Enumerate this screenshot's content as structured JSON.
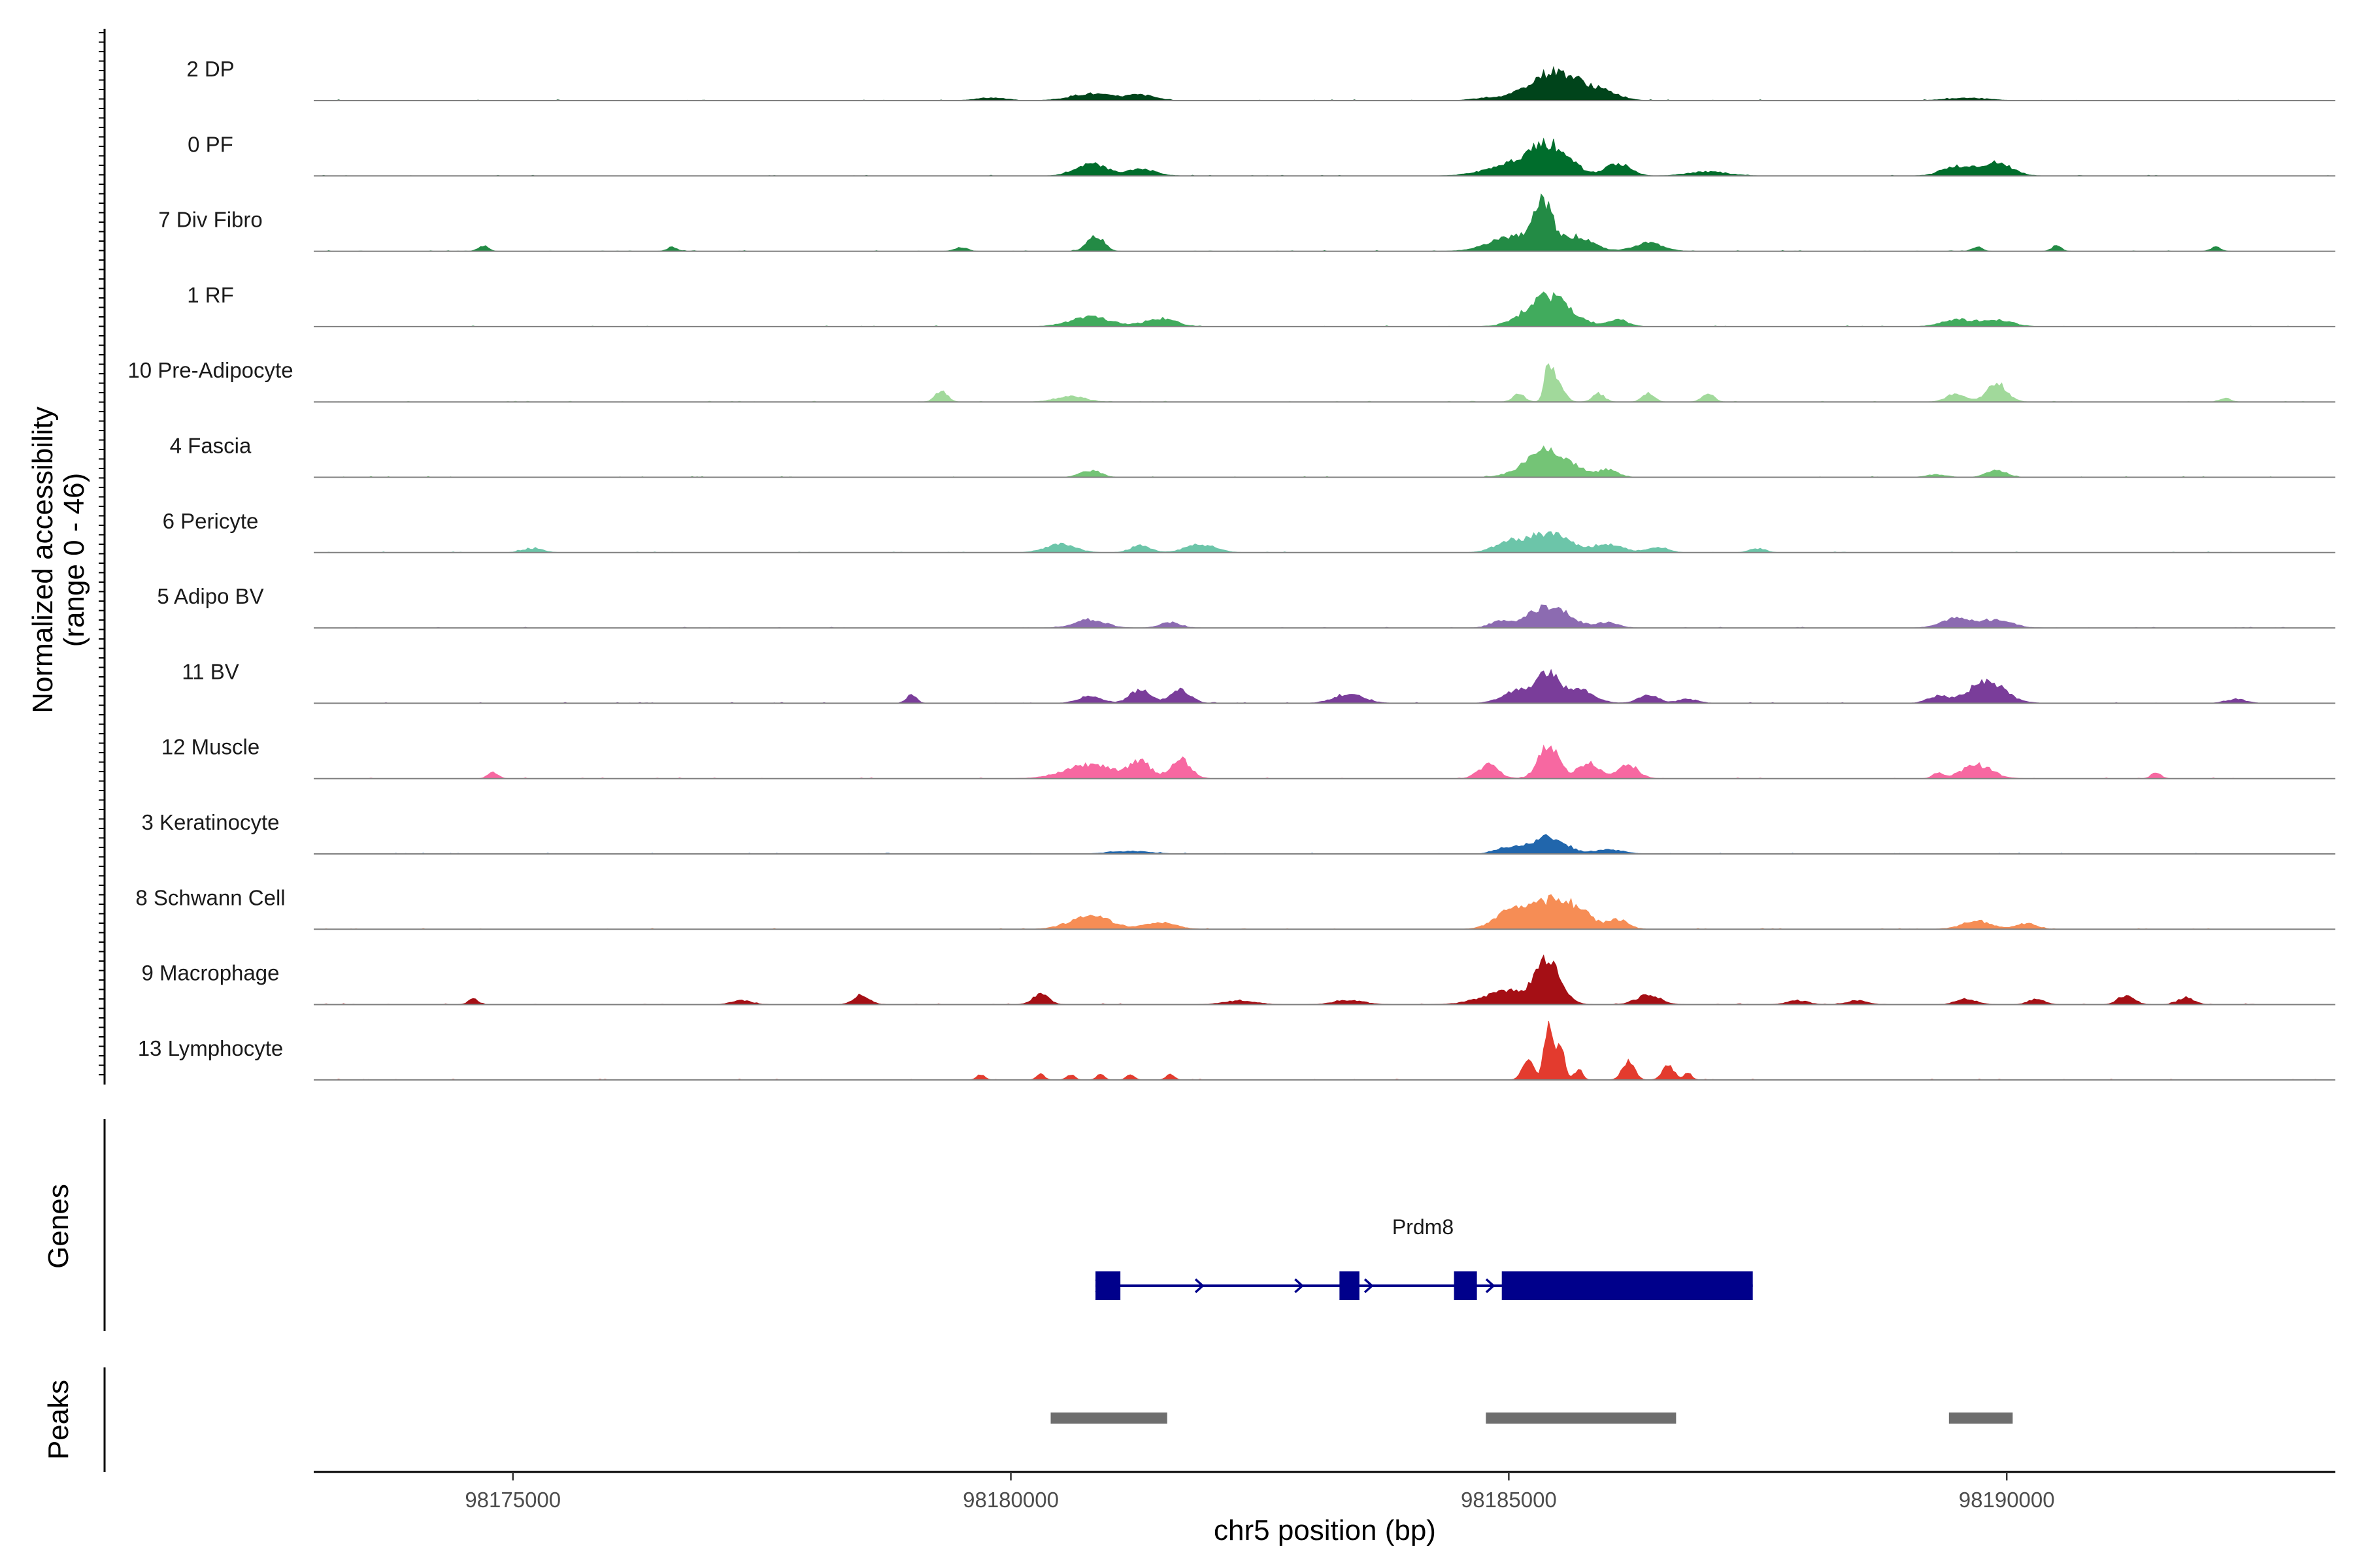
{
  "chart_data": {
    "type": "area",
    "subtype": "genome-browser-coverage",
    "chromosome": "chr5",
    "x_range": [
      98173000,
      98193300
    ],
    "xlabel": "chr5 position (bp)",
    "x_ticks": [
      98175000,
      98180000,
      98185000,
      98190000
    ],
    "x_tick_labels": [
      "98175000",
      "98180000",
      "98185000",
      "98190000"
    ],
    "ylabel_line1": "Normalized accessibility",
    "ylabel_line2": "(range 0 - 46)",
    "y_range": [
      0,
      46
    ],
    "series": [
      {
        "name": "2 DP",
        "color": "#00441b",
        "peaks": [
          [
            98185400,
            18,
            220
          ],
          [
            98185700,
            8,
            200
          ],
          [
            98180800,
            5,
            200
          ],
          [
            98181300,
            4,
            150
          ],
          [
            98186000,
            4,
            150
          ],
          [
            98179800,
            2,
            150
          ],
          [
            98184800,
            2,
            150
          ],
          [
            98189600,
            2,
            200
          ]
        ]
      },
      {
        "name": "0 PF",
        "color": "#006d2c",
        "peaks": [
          [
            98185400,
            22,
            200
          ],
          [
            98185000,
            7,
            250
          ],
          [
            98180800,
            9,
            150
          ],
          [
            98181300,
            5,
            150
          ],
          [
            98186100,
            9,
            120
          ],
          [
            98189500,
            7,
            150
          ],
          [
            98189900,
            10,
            150
          ],
          [
            98187000,
            3,
            200
          ]
        ]
      },
      {
        "name": "7 Div Fibro",
        "color": "#238b45",
        "peaks": [
          [
            98185350,
            28,
            90
          ],
          [
            98185100,
            12,
            250
          ],
          [
            98185700,
            10,
            150
          ],
          [
            98180850,
            12,
            80
          ],
          [
            98174700,
            4,
            50
          ],
          [
            98176600,
            3,
            50
          ],
          [
            98179500,
            3,
            60
          ],
          [
            98186400,
            6,
            150
          ],
          [
            98189700,
            3,
            50
          ],
          [
            98190500,
            4,
            50
          ],
          [
            98192100,
            3,
            50
          ]
        ]
      },
      {
        "name": "1 RF",
        "color": "#41ab5d",
        "peaks": [
          [
            98185400,
            22,
            220
          ],
          [
            98180800,
            7,
            200
          ],
          [
            98181500,
            6,
            150
          ],
          [
            98186100,
            5,
            100
          ],
          [
            98189500,
            5,
            150
          ],
          [
            98189900,
            5,
            150
          ]
        ]
      },
      {
        "name": "10 Pre-Adipocyte",
        "color": "#a1d99b",
        "peaks": [
          [
            98185400,
            26,
            40
          ],
          [
            98185500,
            14,
            60
          ],
          [
            98179300,
            8,
            60
          ],
          [
            98180600,
            4,
            150
          ],
          [
            98185100,
            6,
            60
          ],
          [
            98185900,
            6,
            60
          ],
          [
            98186400,
            6,
            60
          ],
          [
            98187000,
            6,
            60
          ],
          [
            98189500,
            6,
            100
          ],
          [
            98189900,
            14,
            100
          ],
          [
            98192200,
            3,
            50
          ]
        ]
      },
      {
        "name": "4 Fascia",
        "color": "#74c476",
        "peaks": [
          [
            98185400,
            20,
            220
          ],
          [
            98180800,
            5,
            100
          ],
          [
            98186000,
            5,
            100
          ],
          [
            98189900,
            5,
            100
          ],
          [
            98189300,
            2,
            100
          ]
        ]
      },
      {
        "name": "6 Pericyte",
        "color": "#6cc5a9",
        "peaks": [
          [
            98185400,
            14,
            200
          ],
          [
            98185000,
            7,
            150
          ],
          [
            98180500,
            6,
            150
          ],
          [
            98181300,
            5,
            100
          ],
          [
            98181900,
            6,
            150
          ],
          [
            98186000,
            6,
            150
          ],
          [
            98186500,
            4,
            100
          ],
          [
            98187500,
            3,
            80
          ],
          [
            98175200,
            3,
            100
          ]
        ]
      },
      {
        "name": "5 Adipo BV",
        "color": "#8c6bb1",
        "peaks": [
          [
            98185400,
            16,
            200
          ],
          [
            98180800,
            6,
            150
          ],
          [
            98181600,
            4,
            100
          ],
          [
            98189500,
            7,
            150
          ],
          [
            98189900,
            6,
            150
          ],
          [
            98184900,
            4,
            100
          ],
          [
            98186000,
            4,
            100
          ]
        ]
      },
      {
        "name": "11 BV",
        "color": "#7a3d9a",
        "peaks": [
          [
            98185400,
            22,
            100
          ],
          [
            98185100,
            10,
            150
          ],
          [
            98185700,
            10,
            150
          ],
          [
            98181300,
            10,
            100
          ],
          [
            98181700,
            10,
            100
          ],
          [
            98179000,
            6,
            50
          ],
          [
            98180800,
            5,
            120
          ],
          [
            98183400,
            7,
            150
          ],
          [
            98189800,
            16,
            180
          ],
          [
            98189300,
            5,
            100
          ],
          [
            98186400,
            6,
            100
          ],
          [
            98186800,
            3,
            100
          ],
          [
            98192300,
            3,
            100
          ]
        ]
      },
      {
        "name": "12 Muscle",
        "color": "#f768a1",
        "peaks": [
          [
            98185400,
            25,
            100
          ],
          [
            98184800,
            10,
            100
          ],
          [
            98185800,
            12,
            100
          ],
          [
            98186200,
            10,
            100
          ],
          [
            98181300,
            12,
            100
          ],
          [
            98181700,
            14,
            100
          ],
          [
            98180800,
            10,
            250
          ],
          [
            98174800,
            5,
            50
          ],
          [
            98189700,
            10,
            150
          ],
          [
            98189300,
            4,
            50
          ],
          [
            98191500,
            4,
            50
          ]
        ]
      },
      {
        "name": "3 Keratinocyte",
        "color": "#2166ac",
        "peaks": [
          [
            98185400,
            13,
            160
          ],
          [
            98185000,
            5,
            120
          ],
          [
            98186000,
            3,
            150
          ],
          [
            98181200,
            2,
            200
          ]
        ]
      },
      {
        "name": "8 Schwann Cell",
        "color": "#f68d55",
        "peaks": [
          [
            98185400,
            20,
            200
          ],
          [
            98185000,
            12,
            150
          ],
          [
            98185700,
            10,
            150
          ],
          [
            98186100,
            7,
            100
          ],
          [
            98180800,
            10,
            200
          ],
          [
            98181500,
            5,
            150
          ],
          [
            98189700,
            6,
            150
          ],
          [
            98190200,
            4,
            100
          ]
        ]
      },
      {
        "name": "9 Macrophage",
        "color": "#a50f15",
        "peaks": [
          [
            98185400,
            30,
            120
          ],
          [
            98185000,
            10,
            250
          ],
          [
            98178500,
            7,
            80
          ],
          [
            98180300,
            8,
            80
          ],
          [
            98186400,
            7,
            120
          ],
          [
            98191200,
            7,
            80
          ],
          [
            98191800,
            5,
            80
          ],
          [
            98174600,
            4,
            50
          ],
          [
            98177300,
            3,
            100
          ],
          [
            98182300,
            3,
            150
          ],
          [
            98183400,
            3,
            150
          ],
          [
            98187900,
            3,
            100
          ],
          [
            98188500,
            3,
            100
          ],
          [
            98189600,
            4,
            100
          ],
          [
            98190300,
            4,
            80
          ]
        ]
      },
      {
        "name": "13 Lymphocyte",
        "color": "#e33b2e",
        "peaks": [
          [
            98185400,
            46,
            40
          ],
          [
            98185520,
            28,
            40
          ],
          [
            98185200,
            14,
            60
          ],
          [
            98185700,
            8,
            40
          ],
          [
            98186200,
            14,
            60
          ],
          [
            98186600,
            10,
            60
          ],
          [
            98186800,
            5,
            40
          ],
          [
            98179700,
            4,
            40
          ],
          [
            98180300,
            4,
            40
          ],
          [
            98180600,
            4,
            40
          ],
          [
            98180900,
            4,
            40
          ],
          [
            98181200,
            4,
            40
          ],
          [
            98181600,
            4,
            40
          ]
        ]
      }
    ]
  },
  "genes": {
    "title": "Genes",
    "gene_name": "Prdm8",
    "color": "#00008b",
    "start": 98180850,
    "end": 98187450,
    "exons": [
      [
        98180850,
        98181100
      ],
      [
        98183300,
        98183500
      ],
      [
        98184450,
        98184680
      ],
      [
        98184930,
        98187450
      ]
    ],
    "arrows": [
      98180900,
      98181900,
      98182900,
      98183600,
      98184820
    ]
  },
  "peaks_track": {
    "title": "Peaks",
    "color": "#6e6e6e",
    "regions": [
      [
        98180400,
        98181570
      ],
      [
        98184770,
        98186680
      ],
      [
        98189420,
        98190060
      ]
    ]
  }
}
